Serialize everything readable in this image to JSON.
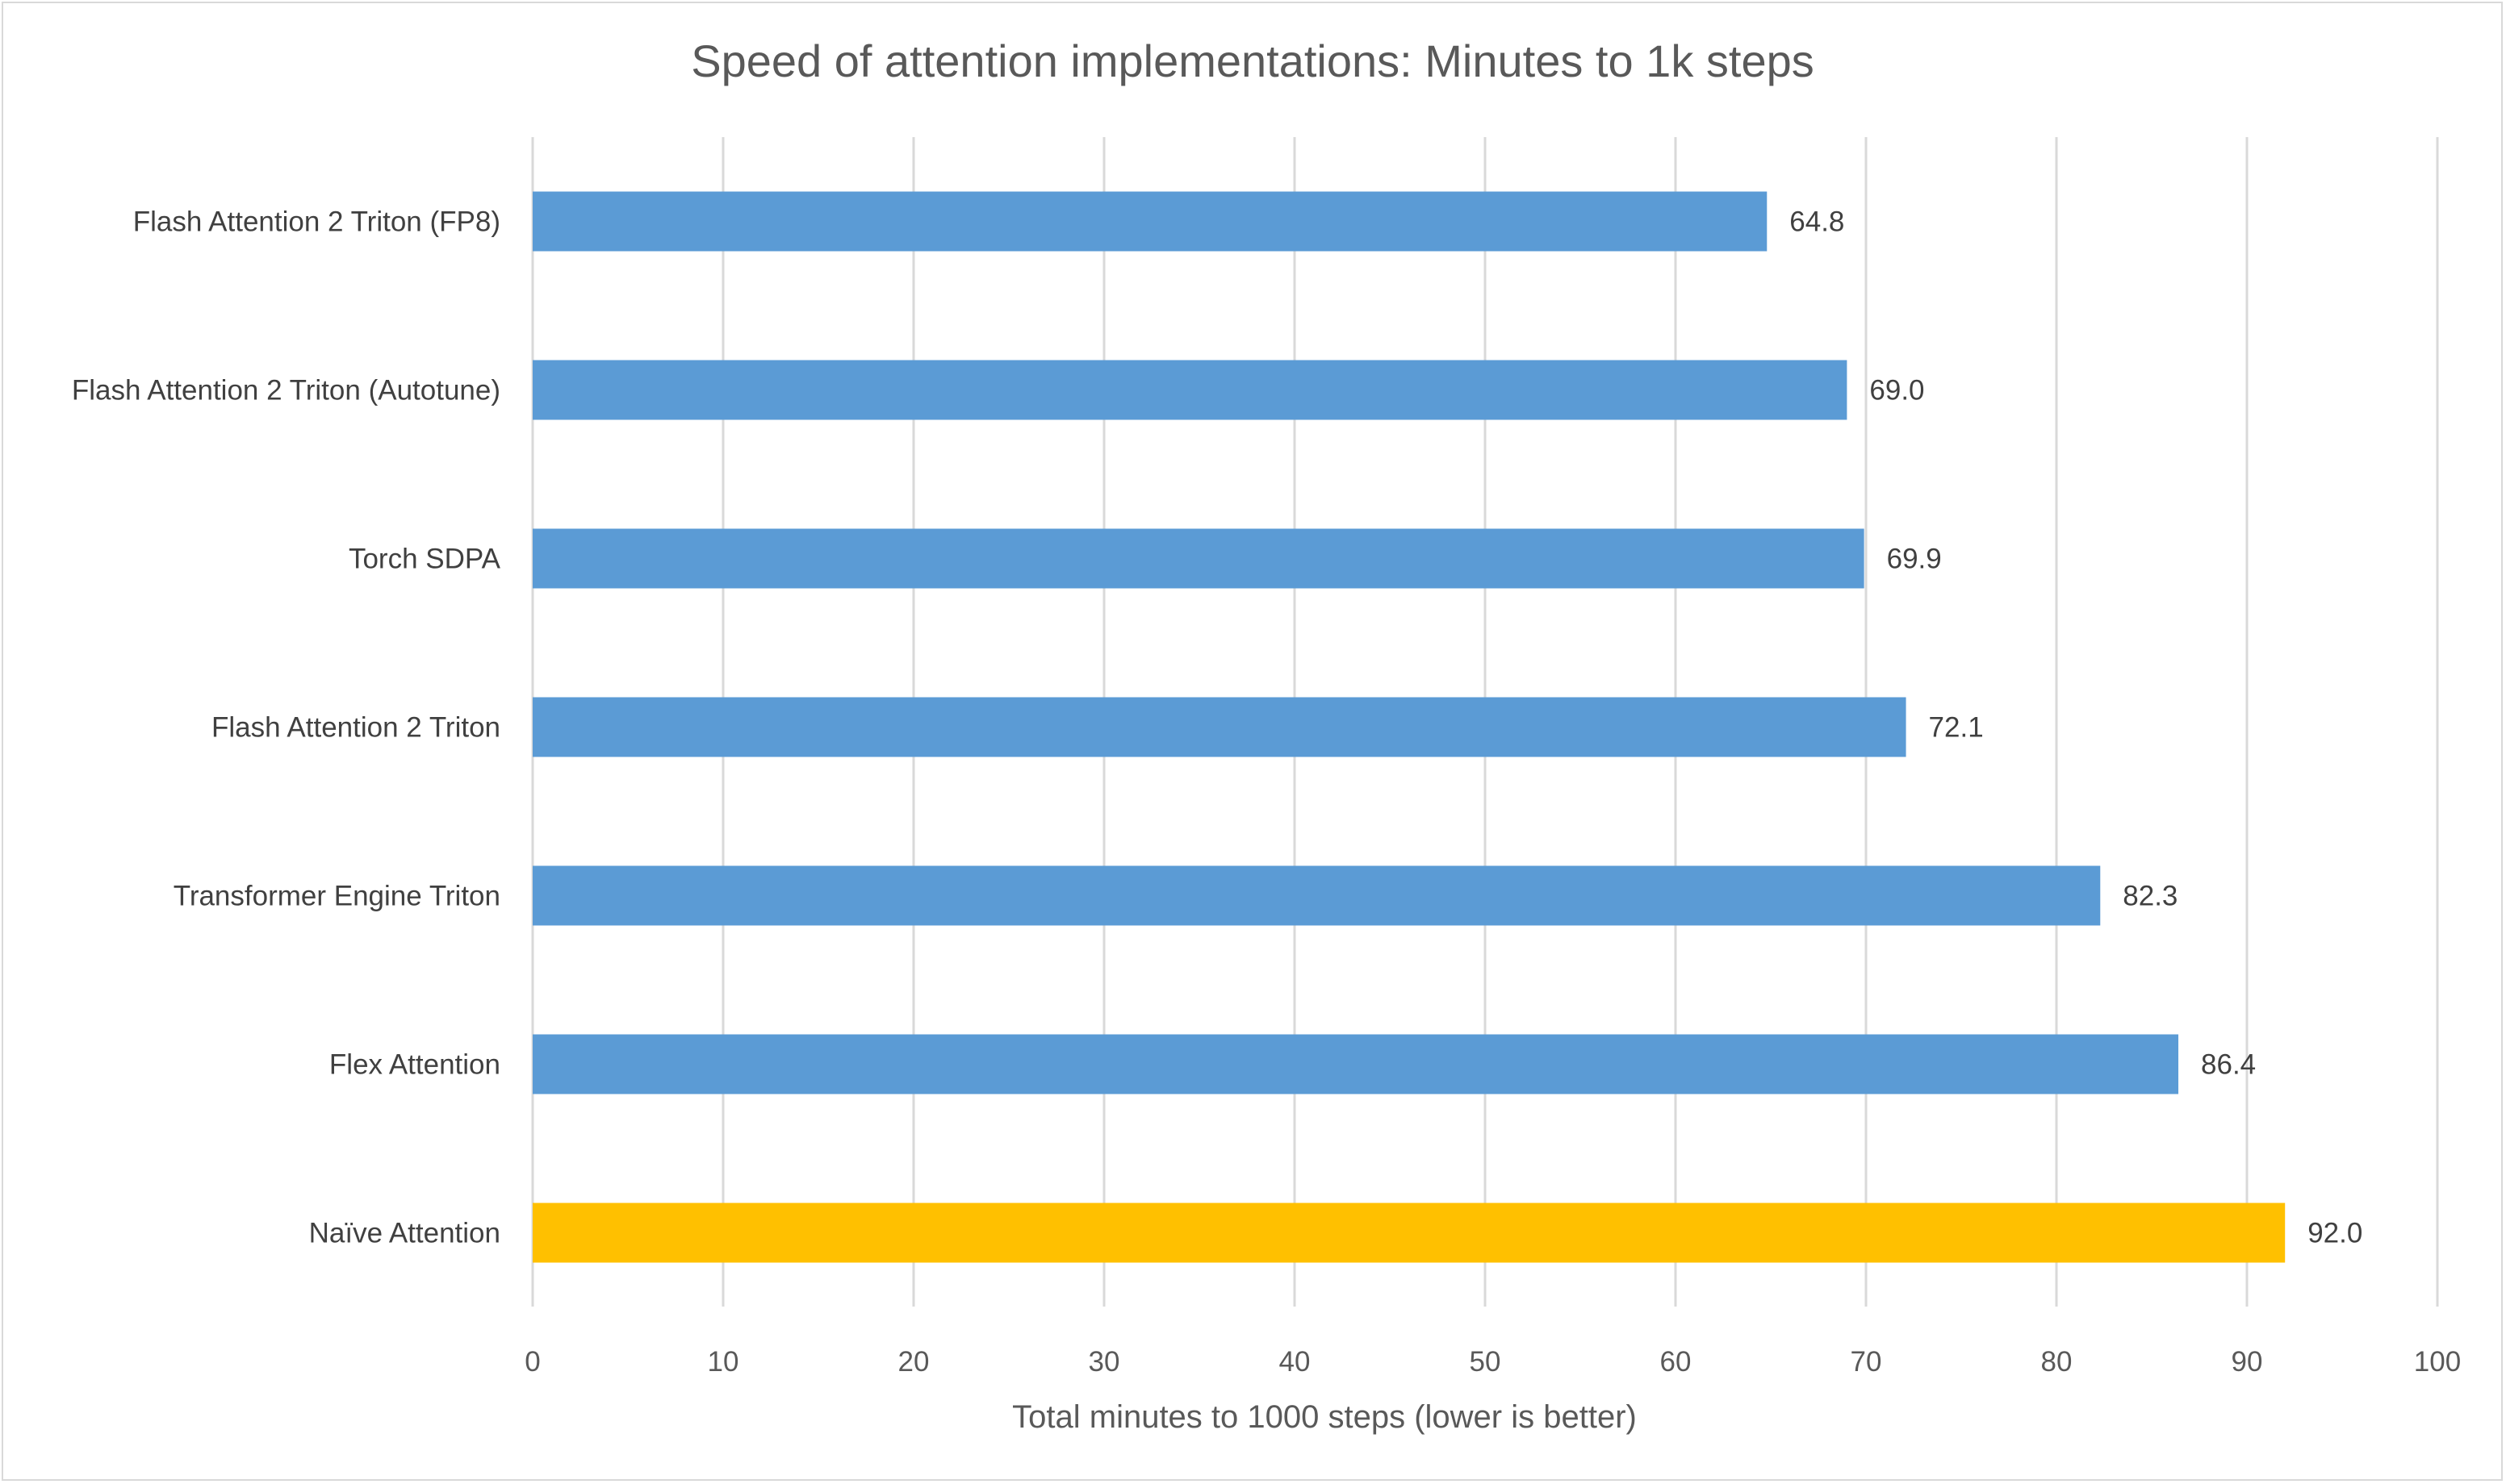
{
  "chart_data": {
    "type": "bar",
    "orientation": "horizontal",
    "title": "Speed of attention implementations: Minutes to 1k steps",
    "xlabel": "Total minutes to 1000 steps (lower is better)",
    "ylabel": "",
    "xlim": [
      0,
      100
    ],
    "x_ticks": [
      0,
      10,
      20,
      30,
      40,
      50,
      60,
      70,
      80,
      90,
      100
    ],
    "grid": "vertical",
    "categories": [
      "Flash Attention 2 Triton (FP8)",
      "Flash Attention 2 Triton (Autotune)",
      "Torch SDPA",
      "Flash Attention 2 Triton",
      "Transformer Engine Triton",
      "Flex Attention",
      "Naïve Attention"
    ],
    "values": [
      64.8,
      69.0,
      69.9,
      72.1,
      82.3,
      86.4,
      92.0
    ],
    "data_labels": [
      "64.8",
      "69.0",
      "69.9",
      "72.1",
      "82.3",
      "86.4",
      "92.0"
    ],
    "bar_colors": [
      "#5b9bd5",
      "#5b9bd5",
      "#5b9bd5",
      "#5b9bd5",
      "#5b9bd5",
      "#5b9bd5",
      "#ffc000"
    ],
    "colors": {
      "default_bar": "#5b9bd5",
      "highlight_bar": "#ffc000",
      "grid": "#d9d9d9",
      "text": "#404040",
      "border": "#d9d9d9"
    }
  }
}
